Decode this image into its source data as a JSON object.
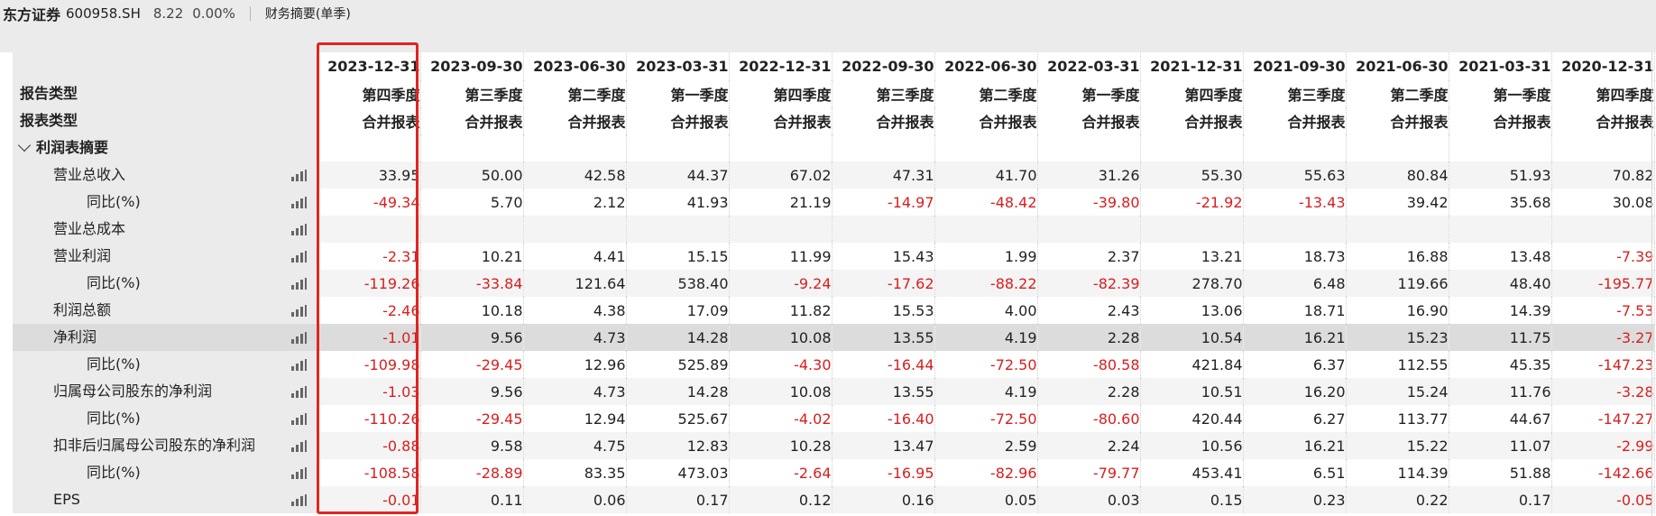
{
  "header": {
    "stock_name": "东方证券",
    "stock_code": "600958.SH",
    "price": "8.22",
    "change": "0.00%",
    "tab": "财务摘要(单季)"
  },
  "colors": {
    "negative": "#d81e1e",
    "selection": "#e0251f"
  },
  "columns": [
    "2023-12-31",
    "2023-09-30",
    "2023-06-30",
    "2023-03-31",
    "2022-12-31",
    "2022-09-30",
    "2022-06-30",
    "2022-03-31",
    "2021-12-31",
    "2021-09-30",
    "2021-06-30",
    "2021-03-31",
    "2020-12-31"
  ],
  "report_period_label": "报告类型",
  "report_periods": [
    "第四季度",
    "第三季度",
    "第二季度",
    "第一季度",
    "第四季度",
    "第三季度",
    "第二季度",
    "第一季度",
    "第四季度",
    "第三季度",
    "第二季度",
    "第一季度",
    "第四季度"
  ],
  "report_type_label": "报表类型",
  "report_types": [
    "合并报表",
    "合并报表",
    "合并报表",
    "合并报表",
    "合并报表",
    "合并报表",
    "合并报表",
    "合并报表",
    "合并报表",
    "合并报表",
    "合并报表",
    "合并报表",
    "合并报表"
  ],
  "section_title": "利润表摘要",
  "rows": [
    {
      "label": "营业总收入",
      "level": 1,
      "values": [
        "33.95",
        "50.00",
        "42.58",
        "44.37",
        "67.02",
        "47.31",
        "41.70",
        "31.26",
        "55.30",
        "55.63",
        "80.84",
        "51.93",
        "70.82"
      ]
    },
    {
      "label": "同比(%)",
      "level": 2,
      "values": [
        "-49.34",
        "5.70",
        "2.12",
        "41.93",
        "21.19",
        "-14.97",
        "-48.42",
        "-39.80",
        "-21.92",
        "-13.43",
        "39.42",
        "35.68",
        "30.08"
      ]
    },
    {
      "label": "营业总成本",
      "level": 1,
      "values": [
        "",
        "",
        "",
        "",
        "",
        "",
        "",
        "",
        "",
        "",
        "",
        "",
        ""
      ]
    },
    {
      "label": "营业利润",
      "level": 1,
      "values": [
        "-2.31",
        "10.21",
        "4.41",
        "15.15",
        "11.99",
        "15.43",
        "1.99",
        "2.37",
        "13.21",
        "18.73",
        "16.88",
        "13.48",
        "-7.39"
      ]
    },
    {
      "label": "同比(%)",
      "level": 2,
      "values": [
        "-119.26",
        "-33.84",
        "121.64",
        "538.40",
        "-9.24",
        "-17.62",
        "-88.22",
        "-82.39",
        "278.70",
        "6.48",
        "119.66",
        "48.40",
        "-195.77"
      ]
    },
    {
      "label": "利润总额",
      "level": 1,
      "values": [
        "-2.46",
        "10.18",
        "4.38",
        "17.09",
        "11.82",
        "15.53",
        "4.00",
        "2.43",
        "13.06",
        "18.71",
        "16.90",
        "14.39",
        "-7.53"
      ]
    },
    {
      "label": "净利润",
      "level": 1,
      "highlight": true,
      "values": [
        "-1.01",
        "9.56",
        "4.73",
        "14.28",
        "10.08",
        "13.55",
        "4.19",
        "2.28",
        "10.54",
        "16.21",
        "15.23",
        "11.75",
        "-3.27"
      ]
    },
    {
      "label": "同比(%)",
      "level": 2,
      "values": [
        "-109.98",
        "-29.45",
        "12.96",
        "525.89",
        "-4.30",
        "-16.44",
        "-72.50",
        "-80.58",
        "421.84",
        "6.37",
        "112.55",
        "45.35",
        "-147.23"
      ]
    },
    {
      "label": "归属母公司股东的净利润",
      "level": 1,
      "values": [
        "-1.03",
        "9.56",
        "4.73",
        "14.28",
        "10.08",
        "13.55",
        "4.19",
        "2.28",
        "10.51",
        "16.20",
        "15.24",
        "11.76",
        "-3.28"
      ]
    },
    {
      "label": "同比(%)",
      "level": 2,
      "values": [
        "-110.26",
        "-29.45",
        "12.94",
        "525.67",
        "-4.02",
        "-16.40",
        "-72.50",
        "-80.60",
        "420.44",
        "6.27",
        "113.77",
        "44.67",
        "-147.27"
      ]
    },
    {
      "label": "扣非后归属母公司股东的净利润",
      "level": 1,
      "values": [
        "-0.88",
        "9.58",
        "4.75",
        "12.83",
        "10.28",
        "13.47",
        "2.59",
        "2.24",
        "10.56",
        "16.21",
        "15.22",
        "11.07",
        "-2.99"
      ]
    },
    {
      "label": "同比(%)",
      "level": 2,
      "values": [
        "-108.58",
        "-28.89",
        "83.35",
        "473.03",
        "-2.64",
        "-16.95",
        "-82.96",
        "-79.77",
        "453.41",
        "6.51",
        "114.39",
        "51.88",
        "-142.66"
      ]
    },
    {
      "label": "EPS",
      "level": 1,
      "values": [
        "-0.01",
        "0.11",
        "0.06",
        "0.17",
        "0.12",
        "0.16",
        "0.05",
        "0.03",
        "0.15",
        "0.23",
        "0.22",
        "0.17",
        "-0.05"
      ]
    }
  ]
}
